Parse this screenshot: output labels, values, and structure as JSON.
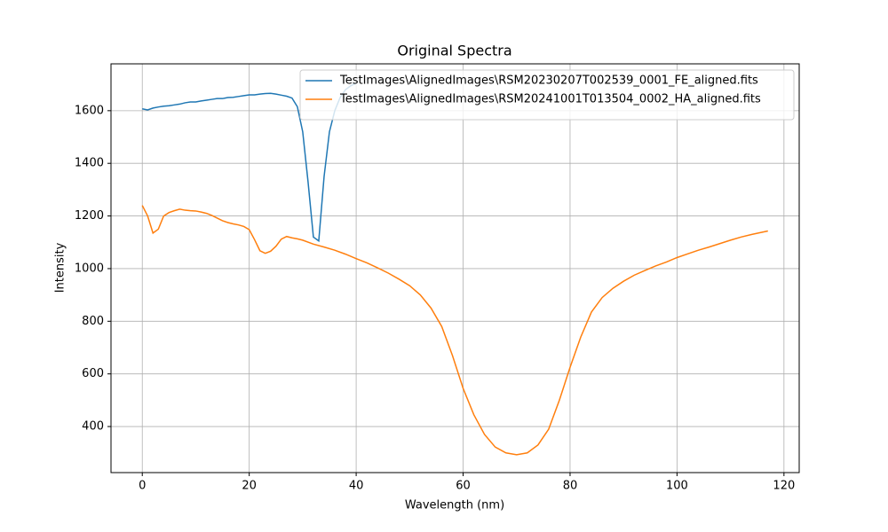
{
  "chart_data": {
    "type": "line",
    "title": "Original Spectra",
    "x_label": "Wavelength (nm)",
    "y_label": "Intensity",
    "xlim": [
      -5.85,
      122.85
    ],
    "ylim": [
      225,
      1778
    ],
    "xticks": [
      0,
      20,
      40,
      60,
      80,
      100,
      120
    ],
    "yticks": [
      400,
      600,
      800,
      1000,
      1200,
      1400,
      1600
    ],
    "grid": true,
    "legend": "upper right",
    "series": [
      {
        "name": "TestImages\\AlignedImages\\RSM20230207T002539_0001_FE_aligned.fits",
        "color": "#1f77b4",
        "x": [
          0,
          1,
          2,
          3,
          4,
          5,
          6,
          7,
          8,
          9,
          10,
          11,
          12,
          13,
          14,
          15,
          16,
          17,
          18,
          19,
          20,
          21,
          22,
          23,
          24,
          25,
          26,
          27,
          28,
          29,
          30,
          31,
          32,
          33,
          34,
          35,
          36,
          37,
          38,
          39,
          40
        ],
        "values": [
          1607,
          1603,
          1610,
          1614,
          1617,
          1619,
          1622,
          1625,
          1630,
          1633,
          1633,
          1637,
          1640,
          1643,
          1646,
          1646,
          1650,
          1651,
          1654,
          1657,
          1660,
          1660,
          1663,
          1665,
          1666,
          1663,
          1659,
          1655,
          1648,
          1615,
          1520,
          1330,
          1120,
          1105,
          1350,
          1520,
          1600,
          1650,
          1680,
          1695,
          1705
        ]
      },
      {
        "name": "TestImages\\AlignedImages\\RSM20241001T013504_0002_HA_aligned.fits",
        "color": "#ff7f0e",
        "x": [
          0,
          1,
          2,
          3,
          4,
          5,
          6,
          7,
          8,
          9,
          10,
          11,
          12,
          13,
          14,
          15,
          16,
          17,
          18,
          19,
          20,
          21,
          22,
          23,
          24,
          25,
          26,
          27,
          28,
          29,
          30,
          32,
          34,
          36,
          38,
          40,
          42,
          44,
          46,
          48,
          50,
          52,
          54,
          56,
          58,
          60,
          62,
          64,
          66,
          68,
          70,
          72,
          74,
          76,
          78,
          80,
          82,
          84,
          86,
          88,
          90,
          92,
          94,
          96,
          98,
          100,
          102,
          104,
          106,
          108,
          110,
          112,
          114,
          117
        ],
        "values": [
          1240,
          1200,
          1135,
          1150,
          1200,
          1213,
          1220,
          1226,
          1222,
          1220,
          1219,
          1215,
          1210,
          1202,
          1192,
          1182,
          1175,
          1170,
          1166,
          1160,
          1148,
          1110,
          1068,
          1058,
          1066,
          1085,
          1112,
          1122,
          1117,
          1113,
          1108,
          1093,
          1082,
          1070,
          1055,
          1038,
          1022,
          1003,
          983,
          960,
          935,
          900,
          850,
          780,
          670,
          545,
          445,
          370,
          322,
          300,
          293,
          300,
          330,
          390,
          500,
          625,
          740,
          835,
          890,
          925,
          952,
          975,
          993,
          1010,
          1025,
          1042,
          1056,
          1070,
          1082,
          1095,
          1108,
          1120,
          1130,
          1143
        ]
      }
    ]
  }
}
